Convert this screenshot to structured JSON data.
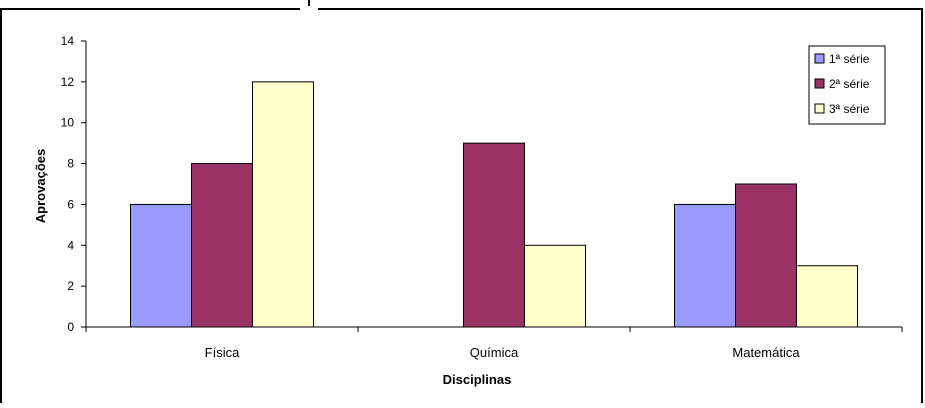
{
  "chart_data": {
    "type": "bar",
    "title": "",
    "xlabel": "Disciplinas",
    "ylabel": "Aprovações",
    "categories": [
      "Física",
      "Química",
      "Matemática"
    ],
    "series": [
      {
        "name": "1ª série",
        "values": [
          6,
          0,
          6
        ],
        "color": "#9999ff"
      },
      {
        "name": "2ª série",
        "values": [
          8,
          9,
          7
        ],
        "color": "#993366"
      },
      {
        "name": "3ª série",
        "values": [
          12,
          4,
          3
        ],
        "color": "#ffffcc"
      }
    ],
    "ylim": [
      0,
      14
    ],
    "yticks": [
      "0",
      "2",
      "4",
      "6",
      "8",
      "10",
      "12",
      "14"
    ],
    "grid": false,
    "legend_position": "top-right"
  }
}
